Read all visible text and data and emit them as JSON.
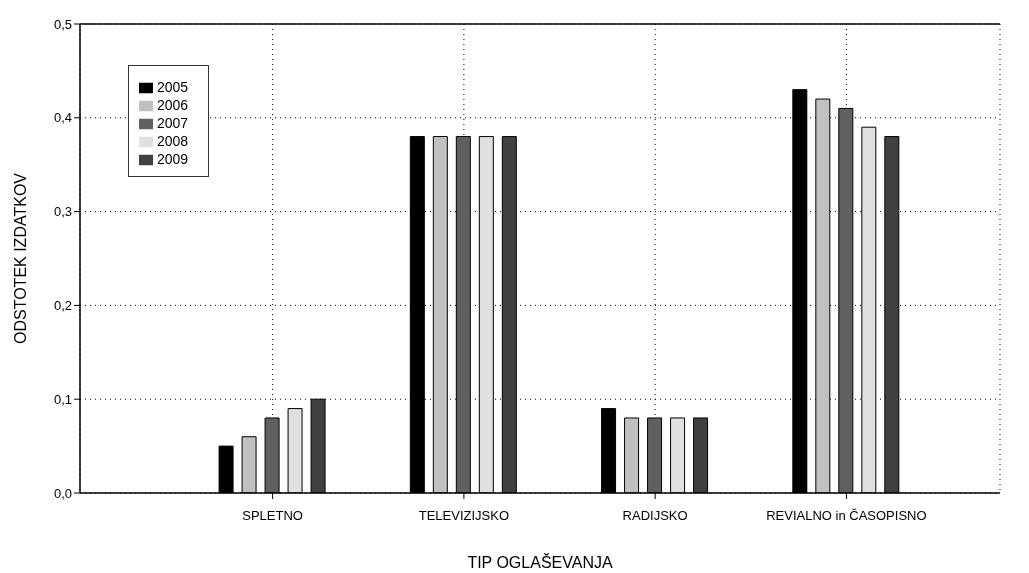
{
  "chart_data": {
    "type": "bar",
    "xlabel": "TIP OGLAŠEVANJA",
    "ylabel": "ODSTOTEK IZDATKOV",
    "categories": [
      "SPLETNO",
      "TELEVIZIJSKO",
      "RADIJSKO",
      "REVIALNO in ČASOPISNO"
    ],
    "series": [
      {
        "name": "2005",
        "color": "#000000",
        "values": [
          0.05,
          0.38,
          0.09,
          0.43
        ]
      },
      {
        "name": "2006",
        "color": "#c0c0c0",
        "values": [
          0.06,
          0.38,
          0.08,
          0.42
        ]
      },
      {
        "name": "2007",
        "color": "#606060",
        "values": [
          0.08,
          0.38,
          0.08,
          0.41
        ]
      },
      {
        "name": "2008",
        "color": "#e0e0e0",
        "values": [
          0.09,
          0.38,
          0.08,
          0.39
        ]
      },
      {
        "name": "2009",
        "color": "#404040",
        "values": [
          0.1,
          0.38,
          0.08,
          0.38
        ]
      }
    ],
    "ylim": [
      0,
      0.5
    ],
    "yticks": [
      {
        "value": 0,
        "label": "0,0"
      },
      {
        "value": 0.1,
        "label": "0,1"
      },
      {
        "value": 0.2,
        "label": "0,2"
      },
      {
        "value": 0.3,
        "label": "0,3"
      },
      {
        "value": 0.4,
        "label": "0,4"
      },
      {
        "value": 0.5,
        "label": "0,5"
      }
    ],
    "grid": true,
    "legend": "top left"
  }
}
